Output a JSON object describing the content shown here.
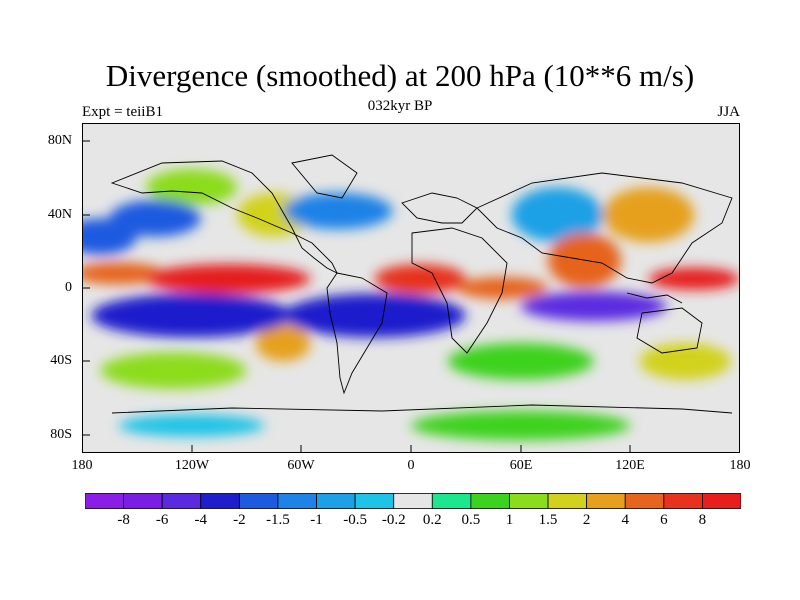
{
  "title": "Divergence (smoothed) at 200 hPa (10**6 m/s)",
  "subtitle": "032kyr BP",
  "left_label": "Expt = teiiB1",
  "right_label": "JJA",
  "x_ticks": [
    "180",
    "120W",
    "60W",
    "0",
    "60E",
    "120E",
    "180"
  ],
  "y_ticks": [
    "80N",
    "40N",
    "0",
    "40S",
    "80S"
  ],
  "colorbar": {
    "labels": [
      "-8",
      "-6",
      "-4",
      "-2",
      "-1.5",
      "-1",
      "-0.5",
      "-0.2",
      "0.2",
      "0.5",
      "1",
      "1.5",
      "2",
      "4",
      "6",
      "8"
    ],
    "colors": [
      "#8a1ee6",
      "#7a1ee6",
      "#5a2ae0",
      "#1e1ecc",
      "#1e5ae0",
      "#1e82e6",
      "#1ea0e6",
      "#1ec3e6",
      "#e6e6e6",
      "#1ee68c",
      "#3cd21e",
      "#8cdc1e",
      "#d2d21e",
      "#e6a01e",
      "#e6641e",
      "#e6321e",
      "#e61e1e"
    ]
  },
  "chart_data": {
    "type": "heatmap",
    "title": "Divergence (smoothed) at 200 hPa (10**6 m/s)",
    "subtitle": "032kyr BP",
    "experiment": "Expt = teiiB1",
    "season": "JJA",
    "xlim": [
      -180,
      180
    ],
    "ylim": [
      -90,
      90
    ],
    "x_tick_labels": [
      "180",
      "120W",
      "60W",
      "0",
      "60E",
      "120E",
      "180"
    ],
    "y_tick_labels": [
      "80N",
      "40N",
      "0",
      "40S",
      "80S"
    ],
    "contour_levels": [
      -8,
      -6,
      -4,
      -2,
      -1.5,
      -1,
      -0.5,
      -0.2,
      0.2,
      0.5,
      1,
      1.5,
      2,
      4,
      6,
      8
    ],
    "features": [
      {
        "lon": -100,
        "lat": 5,
        "value": 8,
        "w": 45,
        "h": 8
      },
      {
        "lon": -160,
        "lat": 8,
        "value": 4,
        "w": 25,
        "h": 6
      },
      {
        "lon": -170,
        "lat": 28,
        "value": -2,
        "w": 20,
        "h": 10
      },
      {
        "lon": -140,
        "lat": 38,
        "value": -2,
        "w": 25,
        "h": 10
      },
      {
        "lon": -120,
        "lat": 55,
        "value": 1,
        "w": 25,
        "h": 10
      },
      {
        "lon": -75,
        "lat": 40,
        "value": 1.5,
        "w": 20,
        "h": 12
      },
      {
        "lon": -40,
        "lat": 42,
        "value": -1.5,
        "w": 30,
        "h": 10
      },
      {
        "lon": 5,
        "lat": 5,
        "value": 6,
        "w": 25,
        "h": 8
      },
      {
        "lon": 50,
        "lat": 0,
        "value": 4,
        "w": 25,
        "h": 6
      },
      {
        "lon": 95,
        "lat": 15,
        "value": 4,
        "w": 20,
        "h": 15
      },
      {
        "lon": 155,
        "lat": 5,
        "value": 8,
        "w": 25,
        "h": 6
      },
      {
        "lon": 130,
        "lat": 40,
        "value": 2,
        "w": 25,
        "h": 15
      },
      {
        "lon": 80,
        "lat": 40,
        "value": -1,
        "w": 25,
        "h": 15
      },
      {
        "lon": -120,
        "lat": -15,
        "value": -4,
        "w": 55,
        "h": 12
      },
      {
        "lon": -20,
        "lat": -15,
        "value": -4,
        "w": 50,
        "h": 12
      },
      {
        "lon": 100,
        "lat": -10,
        "value": -6,
        "w": 40,
        "h": 8
      },
      {
        "lon": -70,
        "lat": -30,
        "value": 2,
        "w": 15,
        "h": 10
      },
      {
        "lon": -130,
        "lat": -45,
        "value": 1,
        "w": 40,
        "h": 10
      },
      {
        "lon": 60,
        "lat": -40,
        "value": 0.5,
        "w": 40,
        "h": 10
      },
      {
        "lon": 150,
        "lat": -40,
        "value": 1.5,
        "w": 25,
        "h": 10
      },
      {
        "lon": -120,
        "lat": -75,
        "value": -0.5,
        "w": 40,
        "h": 6
      },
      {
        "lon": 60,
        "lat": -75,
        "value": 0.5,
        "w": 60,
        "h": 8
      }
    ]
  }
}
